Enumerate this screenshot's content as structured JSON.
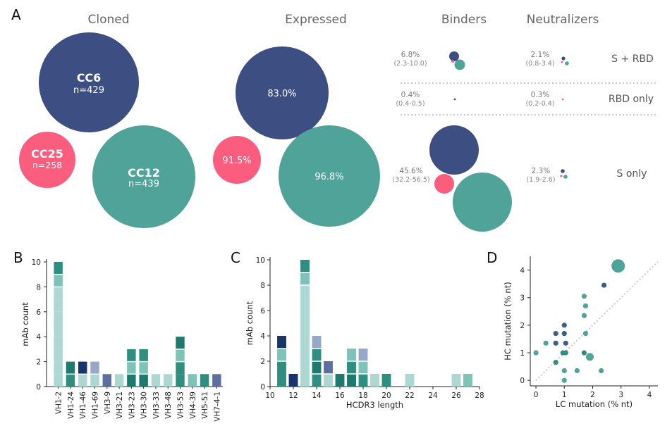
{
  "panels": {
    "A": "A",
    "B": "B",
    "C": "C",
    "D": "D"
  },
  "colors": {
    "CC6": "#3d4f82",
    "CC25": "#fb5d7f",
    "CC12": "#4fa399",
    "b_light": "#add8d2",
    "b_mid": "#7dc3b7",
    "b_teal": "#2e8f80",
    "b_dteal": "#1e7a6e",
    "b_navy": "#16356b",
    "b_lav": "#97a7c8",
    "b_slate": "#5d6ea1",
    "scatter_a": "#4fa399",
    "scatter_b": "#2e8f80",
    "scatter_c": "#3d5d8f",
    "diag": "#cccccc"
  },
  "chart_data": [
    {
      "type": "bubble",
      "panel": "A",
      "headers": {
        "cloned": "Cloned",
        "expressed": "Expressed",
        "binders": "Binders",
        "neutralizers": "Neutralizers"
      },
      "groups": [
        {
          "name": "CC6",
          "n_label": "n=429",
          "n": 429,
          "expressed": "83.0%"
        },
        {
          "name": "CC25",
          "n_label": "n=258",
          "n": 258,
          "expressed": "91.5%"
        },
        {
          "name": "CC12",
          "n_label": "n=439",
          "n": 439,
          "expressed": "96.8%"
        }
      ],
      "rows": [
        {
          "label": "S + RBD",
          "binders_pct": "6.8%",
          "binders_ci": "(2.3-10.0)",
          "neutralizers_pct": "2.1%",
          "neutralizers_ci": "(0.8-3.4)"
        },
        {
          "label": "RBD only",
          "binders_pct": "0.4%",
          "binders_ci": "(0.4-0.5)",
          "neutralizers_pct": "0.3%",
          "neutralizers_ci": "(0.2-0.4)"
        },
        {
          "label": "S only",
          "binders_pct": "45.6%",
          "binders_ci": "(32.2-56.5)",
          "neutralizers_pct": "2.3%",
          "neutralizers_ci": "(1.9-2.6)"
        }
      ]
    },
    {
      "type": "bar",
      "panel": "B",
      "stacked": true,
      "ylabel": "mAb count",
      "ylim": [
        0,
        10
      ],
      "yticks": [
        "0",
        "2",
        "4",
        "6",
        "8",
        "10"
      ],
      "categories": [
        "VH1-2",
        "VH1-24",
        "VH1-46",
        "VH1-69",
        "VH3-9",
        "VH3-21",
        "VH3-23",
        "VH3-30",
        "VH3-33",
        "VH3-48",
        "VH3-53",
        "VH4-39",
        "VH5-51",
        "VH7-4-1"
      ],
      "stacks": [
        [
          [
            "b_light",
            8
          ],
          [
            "b_mid",
            1
          ],
          [
            "b_teal",
            1
          ]
        ],
        [
          [
            "b_teal",
            1
          ],
          [
            "b_dteal",
            1
          ]
        ],
        [
          [
            "b_light",
            1
          ],
          [
            "b_navy",
            1
          ]
        ],
        [
          [
            "b_light",
            1
          ],
          [
            "b_lav",
            1
          ]
        ],
        [
          [
            "b_slate",
            1
          ]
        ],
        [
          [
            "b_light",
            1
          ]
        ],
        [
          [
            "b_dteal",
            1
          ],
          [
            "b_mid",
            1
          ],
          [
            "b_teal",
            1
          ]
        ],
        [
          [
            "b_dteal",
            1
          ],
          [
            "b_mid",
            1
          ],
          [
            "b_teal",
            1
          ]
        ],
        [
          [
            "b_light",
            1
          ]
        ],
        [
          [
            "b_light",
            1
          ]
        ],
        [
          [
            "b_teal",
            2
          ],
          [
            "b_mid",
            1
          ],
          [
            "b_dteal",
            1
          ]
        ],
        [
          [
            "b_mid",
            1
          ]
        ],
        [
          [
            "b_teal",
            1
          ]
        ],
        [
          [
            "b_slate",
            1
          ]
        ]
      ]
    },
    {
      "type": "bar",
      "panel": "C",
      "stacked": true,
      "xlabel": "HCDR3 length",
      "ylabel": "mAb count",
      "xlim": [
        10,
        28
      ],
      "ylim": [
        0,
        10
      ],
      "xticks": [
        "10",
        "12",
        "14",
        "16",
        "18",
        "20",
        "22",
        "24",
        "26",
        "28"
      ],
      "yticks": [
        "0",
        "2",
        "4",
        "6",
        "8",
        "10"
      ],
      "x": [
        11,
        12,
        13,
        14,
        15,
        16,
        17,
        18,
        19,
        20,
        22,
        26,
        27
      ],
      "stacks": [
        [
          [
            "b_teal",
            2
          ],
          [
            "b_mid",
            1
          ],
          [
            "b_navy",
            1
          ]
        ],
        [
          [
            "b_navy",
            1
          ]
        ],
        [
          [
            "b_light",
            8
          ],
          [
            "b_mid",
            1
          ],
          [
            "b_teal",
            1
          ]
        ],
        [
          [
            "b_teal",
            1
          ],
          [
            "b_dteal",
            1
          ],
          [
            "b_teal",
            1
          ],
          [
            "b_lav",
            1
          ]
        ],
        [
          [
            "b_light",
            1
          ],
          [
            "b_slate",
            1
          ]
        ],
        [
          [
            "b_dteal",
            1
          ]
        ],
        [
          [
            "b_dteal",
            1
          ],
          [
            "b_teal",
            1
          ],
          [
            "b_mid",
            1
          ]
        ],
        [
          [
            "b_teal",
            1
          ],
          [
            "b_mid",
            1
          ],
          [
            "b_lav",
            1
          ]
        ],
        [
          [
            "b_light",
            1
          ]
        ],
        [
          [
            "b_teal",
            1
          ]
        ],
        [
          [
            "b_light",
            1
          ]
        ],
        [
          [
            "b_light",
            1
          ]
        ],
        [
          [
            "b_mid",
            1
          ]
        ]
      ]
    },
    {
      "type": "scatter",
      "panel": "D",
      "xlabel": "LC mutation (% nt)",
      "ylabel": "HC mutation (% nt)",
      "xlim": [
        -0.2,
        4.3
      ],
      "ylim": [
        -0.2,
        4.5
      ],
      "xticks": [
        "0",
        "1",
        "2",
        "3",
        "4"
      ],
      "yticks": [
        "0",
        "1",
        "2",
        "3",
        "4"
      ],
      "points": [
        {
          "x": 2.9,
          "y": 4.15,
          "c": "scatter_a",
          "s": 2
        },
        {
          "x": 2.4,
          "y": 3.45,
          "c": "scatter_c",
          "s": 1
        },
        {
          "x": 1.7,
          "y": 3.05,
          "c": "scatter_a",
          "s": 1
        },
        {
          "x": 1.75,
          "y": 2.7,
          "c": "scatter_a",
          "s": 1
        },
        {
          "x": 1.7,
          "y": 2.35,
          "c": "scatter_a",
          "s": 1
        },
        {
          "x": 1.0,
          "y": 2.0,
          "c": "scatter_c",
          "s": 1
        },
        {
          "x": 0.7,
          "y": 1.7,
          "c": "scatter_c",
          "s": 1
        },
        {
          "x": 1.0,
          "y": 1.7,
          "c": "scatter_c",
          "s": 1
        },
        {
          "x": 1.75,
          "y": 1.7,
          "c": "scatter_a",
          "s": 1
        },
        {
          "x": 0.35,
          "y": 1.35,
          "c": "scatter_a",
          "s": 1
        },
        {
          "x": 0.7,
          "y": 1.35,
          "c": "scatter_c",
          "s": 1
        },
        {
          "x": 1.05,
          "y": 1.35,
          "c": "scatter_c",
          "s": 1
        },
        {
          "x": 0.0,
          "y": 1.0,
          "c": "scatter_a",
          "s": 1
        },
        {
          "x": 0.95,
          "y": 1.0,
          "c": "scatter_b",
          "s": 1
        },
        {
          "x": 1.05,
          "y": 1.0,
          "c": "scatter_b",
          "s": 1
        },
        {
          "x": 1.7,
          "y": 1.0,
          "c": "scatter_b",
          "s": 1
        },
        {
          "x": 1.9,
          "y": 0.85,
          "c": "scatter_a",
          "s": 1.5
        },
        {
          "x": 0.7,
          "y": 0.65,
          "c": "scatter_b",
          "s": 1
        },
        {
          "x": 1.0,
          "y": 0.35,
          "c": "scatter_a",
          "s": 1
        },
        {
          "x": 1.45,
          "y": 0.35,
          "c": "scatter_a",
          "s": 1
        },
        {
          "x": 2.3,
          "y": 0.35,
          "c": "scatter_a",
          "s": 1
        },
        {
          "x": 1.0,
          "y": 0.0,
          "c": "scatter_a",
          "s": 1
        }
      ]
    }
  ]
}
